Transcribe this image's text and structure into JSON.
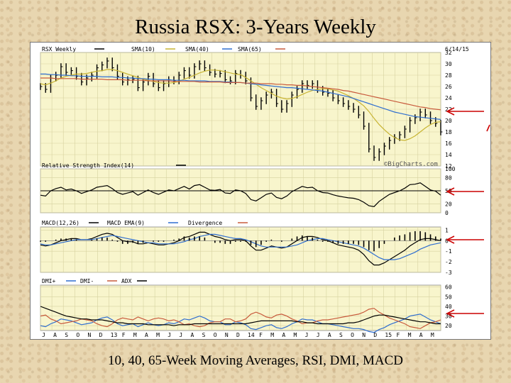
{
  "slide": {
    "title": "Russia RSX: 3-Years Weekly",
    "caption": "10, 40, 65-Week Moving Averages, RSI, DMI, MACD"
  },
  "chart_data": [
    {
      "panel": "price",
      "type": "line",
      "title": "",
      "date_label": "6/14/15",
      "watermark": "©BigCharts.com",
      "legend": [
        {
          "label": "RSX Weekly",
          "color": "#000000"
        },
        {
          "label": "SMA(10)",
          "color": "#c8b432"
        },
        {
          "label": "SMA(40)",
          "color": "#2f6ed0"
        },
        {
          "label": "SMA(65)",
          "color": "#c85a3c"
        }
      ],
      "y_ticks": [
        32,
        30,
        28,
        26,
        24,
        22,
        20,
        18,
        16,
        14,
        12
      ],
      "ylim": [
        12,
        32
      ],
      "series": [
        {
          "name": "RSX Weekly",
          "values": [
            26.0,
            25.5,
            27.5,
            28.0,
            29.5,
            28.5,
            28.8,
            27.8,
            26.8,
            27.5,
            28.0,
            29.3,
            29.8,
            30.5,
            29.3,
            27.8,
            26.8,
            27.2,
            27.3,
            25.8,
            26.8,
            27.8,
            26.5,
            25.8,
            26.5,
            27.2,
            27.0,
            28.0,
            28.8,
            28.0,
            29.5,
            30.0,
            29.3,
            28.5,
            28.2,
            28.3,
            27.2,
            27.0,
            28.3,
            28.0,
            27.0,
            24.0,
            22.5,
            23.5,
            24.5,
            25.0,
            23.0,
            22.0,
            23.0,
            24.5,
            25.5,
            26.5,
            26.2,
            26.5,
            25.5,
            25.0,
            24.8,
            24.0,
            23.5,
            23.0,
            22.5,
            22.0,
            21.0,
            19.0,
            15.0,
            13.5,
            14.5,
            15.5,
            16.5,
            17.0,
            17.5,
            18.5,
            20.0,
            20.5,
            21.5,
            21.0,
            20.0,
            19.5,
            18.0
          ]
        },
        {
          "name": "SMA(10)",
          "values": [
            26.5,
            26.3,
            26.6,
            27.0,
            27.5,
            27.8,
            28.0,
            28.2,
            28.2,
            28.3,
            28.5,
            28.7,
            28.8,
            29.0,
            29.0,
            28.8,
            28.5,
            28.2,
            27.9,
            27.6,
            27.3,
            27.1,
            26.9,
            26.7,
            26.6,
            26.6,
            26.7,
            26.9,
            27.3,
            27.6,
            28.0,
            28.4,
            28.7,
            28.9,
            28.9,
            28.8,
            28.6,
            28.4,
            28.2,
            28.1,
            27.6,
            27.0,
            26.4,
            25.8,
            25.3,
            24.8,
            24.3,
            24.0,
            23.8,
            23.9,
            24.2,
            24.6,
            25.0,
            25.3,
            25.5,
            25.6,
            25.6,
            25.4,
            25.2,
            24.8,
            24.4,
            23.9,
            23.3,
            22.6,
            21.6,
            20.4,
            19.3,
            18.4,
            17.6,
            17.0,
            16.6,
            16.5,
            16.8,
            17.3,
            18.0,
            18.7,
            19.3,
            19.7,
            19.8
          ]
        },
        {
          "name": "SMA(40)",
          "values": [
            28.2,
            28.2,
            28.1,
            28.1,
            28.0,
            28.0,
            27.9,
            27.9,
            27.8,
            27.8,
            27.8,
            27.8,
            27.7,
            27.7,
            27.7,
            27.6,
            27.6,
            27.5,
            27.5,
            27.4,
            27.4,
            27.3,
            27.3,
            27.2,
            27.2,
            27.2,
            27.1,
            27.1,
            27.1,
            27.0,
            27.0,
            27.0,
            27.0,
            26.9,
            26.9,
            26.9,
            26.8,
            26.8,
            26.7,
            26.7,
            26.6,
            26.5,
            26.4,
            26.3,
            26.2,
            26.1,
            26.0,
            25.9,
            25.8,
            25.8,
            25.7,
            25.6,
            25.5,
            25.4,
            25.3,
            25.2,
            25.0,
            24.8,
            24.6,
            24.4,
            24.2,
            23.9,
            23.6,
            23.3,
            23.0,
            22.7,
            22.4,
            22.1,
            21.8,
            21.5,
            21.3,
            21.1,
            20.9,
            20.7,
            20.6,
            20.5,
            20.4,
            20.3,
            20.2
          ]
        },
        {
          "name": "SMA(65)",
          "values": [
            27.5,
            27.5,
            27.5,
            27.4,
            27.4,
            27.4,
            27.4,
            27.4,
            27.3,
            27.3,
            27.3,
            27.3,
            27.3,
            27.2,
            27.2,
            27.2,
            27.2,
            27.1,
            27.1,
            27.1,
            27.1,
            27.0,
            27.0,
            27.0,
            27.0,
            27.0,
            26.9,
            26.9,
            26.9,
            26.9,
            26.9,
            26.8,
            26.8,
            26.8,
            26.8,
            26.8,
            26.7,
            26.7,
            26.7,
            26.7,
            26.6,
            26.6,
            26.6,
            26.5,
            26.5,
            26.5,
            26.4,
            26.4,
            26.3,
            26.3,
            26.2,
            26.2,
            26.1,
            26.0,
            25.9,
            25.8,
            25.7,
            25.6,
            25.5,
            25.3,
            25.2,
            25.0,
            24.8,
            24.6,
            24.4,
            24.2,
            24.0,
            23.8,
            23.6,
            23.4,
            23.2,
            23.0,
            22.8,
            22.6,
            22.4,
            22.3,
            22.1,
            22.0,
            21.9
          ]
        }
      ]
    },
    {
      "panel": "rsi",
      "type": "line",
      "legend": [
        {
          "label": "Relative Strength Index(14)",
          "color": "#000000"
        }
      ],
      "y_ticks": [
        100,
        80,
        50,
        20,
        0
      ],
      "ylim": [
        0,
        100
      ],
      "reference_line": 50,
      "series": [
        {
          "name": "Relative Strength Index(14)",
          "values": [
            40,
            38,
            50,
            55,
            58,
            52,
            54,
            50,
            44,
            48,
            52,
            58,
            60,
            62,
            55,
            46,
            42,
            45,
            48,
            40,
            46,
            52,
            46,
            42,
            47,
            52,
            50,
            55,
            60,
            54,
            62,
            64,
            58,
            52,
            51,
            53,
            45,
            44,
            52,
            50,
            44,
            30,
            27,
            34,
            42,
            45,
            35,
            32,
            38,
            48,
            54,
            60,
            57,
            58,
            50,
            46,
            45,
            41,
            38,
            36,
            34,
            33,
            30,
            24,
            16,
            14,
            26,
            34,
            42,
            46,
            50,
            56,
            64,
            65,
            68,
            60,
            52,
            49,
            40
          ]
        }
      ]
    },
    {
      "panel": "macd",
      "type": "line",
      "legend": [
        {
          "label": "MACD(12,26)",
          "color": "#000000"
        },
        {
          "label": "MACD EMA(9)",
          "color": "#2f6ed0"
        },
        {
          "label": "Divergence",
          "color": "#c85a3c"
        }
      ],
      "y_ticks": [
        1,
        0,
        -1,
        -2,
        -3
      ],
      "ylim": [
        -3,
        1.3
      ],
      "series": [
        {
          "name": "MACD(12,26)",
          "values": [
            -0.4,
            -0.5,
            -0.4,
            -0.2,
            0.0,
            0.1,
            0.2,
            0.2,
            0.1,
            0.1,
            0.2,
            0.4,
            0.6,
            0.7,
            0.6,
            0.3,
            0.0,
            -0.1,
            -0.1,
            -0.3,
            -0.3,
            -0.2,
            -0.3,
            -0.4,
            -0.4,
            -0.3,
            -0.2,
            0.0,
            0.3,
            0.4,
            0.6,
            0.8,
            0.8,
            0.6,
            0.4,
            0.3,
            0.1,
            0.0,
            0.1,
            0.1,
            0.0,
            -0.5,
            -0.9,
            -0.9,
            -0.7,
            -0.5,
            -0.6,
            -0.7,
            -0.6,
            -0.3,
            0.0,
            0.3,
            0.4,
            0.4,
            0.3,
            0.1,
            0.0,
            -0.2,
            -0.4,
            -0.5,
            -0.6,
            -0.7,
            -0.9,
            -1.3,
            -1.9,
            -2.3,
            -2.3,
            -2.1,
            -1.8,
            -1.5,
            -1.2,
            -0.9,
            -0.5,
            -0.2,
            0.1,
            0.2,
            0.2,
            0.1,
            0.0
          ]
        },
        {
          "name": "MACD EMA(9)",
          "values": [
            -0.3,
            -0.4,
            -0.4,
            -0.3,
            -0.2,
            -0.1,
            0.0,
            0.1,
            0.1,
            0.1,
            0.1,
            0.2,
            0.3,
            0.4,
            0.5,
            0.4,
            0.3,
            0.2,
            0.1,
            0.0,
            -0.1,
            -0.2,
            -0.2,
            -0.3,
            -0.3,
            -0.3,
            -0.3,
            -0.2,
            -0.1,
            0.1,
            0.2,
            0.4,
            0.5,
            0.6,
            0.6,
            0.5,
            0.4,
            0.3,
            0.2,
            0.2,
            0.1,
            -0.1,
            -0.3,
            -0.5,
            -0.6,
            -0.6,
            -0.6,
            -0.6,
            -0.6,
            -0.5,
            -0.4,
            -0.2,
            0.0,
            0.1,
            0.2,
            0.2,
            0.1,
            0.0,
            -0.1,
            -0.2,
            -0.3,
            -0.4,
            -0.5,
            -0.7,
            -1.0,
            -1.3,
            -1.6,
            -1.8,
            -1.8,
            -1.8,
            -1.7,
            -1.5,
            -1.3,
            -1.1,
            -0.8,
            -0.6,
            -0.4,
            -0.3,
            -0.2
          ]
        }
      ]
    },
    {
      "panel": "dmi",
      "type": "line",
      "legend": [
        {
          "label": "DMI+",
          "color": "#2f6ed0"
        },
        {
          "label": "DMI-",
          "color": "#c85a3c"
        },
        {
          "label": "ADX",
          "color": "#000000"
        }
      ],
      "y_ticks": [
        60,
        50,
        40,
        30,
        20
      ],
      "ylim": [
        15,
        62
      ],
      "series": [
        {
          "name": "DMI+",
          "values": [
            20,
            19,
            22,
            24,
            27,
            26,
            25,
            23,
            21,
            22,
            23,
            26,
            28,
            29,
            26,
            22,
            20,
            21,
            22,
            19,
            21,
            23,
            21,
            20,
            21,
            23,
            22,
            24,
            27,
            26,
            28,
            30,
            28,
            25,
            24,
            24,
            21,
            21,
            24,
            23,
            21,
            17,
            16,
            18,
            20,
            21,
            18,
            17,
            19,
            22,
            24,
            27,
            26,
            26,
            24,
            22,
            22,
            21,
            20,
            19,
            18,
            17,
            17,
            16,
            14,
            13,
            16,
            18,
            21,
            23,
            25,
            27,
            30,
            31,
            32,
            29,
            26,
            24,
            22
          ]
        },
        {
          "name": "DMI-",
          "values": [
            30,
            31,
            27,
            25,
            22,
            23,
            24,
            25,
            27,
            26,
            25,
            22,
            20,
            19,
            22,
            26,
            28,
            27,
            26,
            29,
            27,
            25,
            27,
            28,
            27,
            25,
            26,
            24,
            21,
            22,
            20,
            19,
            20,
            23,
            24,
            24,
            27,
            27,
            24,
            25,
            27,
            32,
            34,
            32,
            29,
            28,
            31,
            32,
            30,
            27,
            25,
            22,
            23,
            23,
            25,
            26,
            26,
            27,
            28,
            29,
            30,
            31,
            32,
            34,
            37,
            38,
            34,
            31,
            28,
            26,
            24,
            22,
            19,
            18,
            17,
            20,
            23,
            24,
            26
          ]
        },
        {
          "name": "ADX",
          "values": [
            40,
            38,
            36,
            34,
            32,
            30,
            29,
            28,
            27,
            27,
            26,
            26,
            26,
            25,
            24,
            23,
            23,
            22,
            22,
            22,
            22,
            21,
            21,
            21,
            21,
            21,
            20,
            21,
            21,
            21,
            22,
            22,
            22,
            22,
            22,
            22,
            22,
            22,
            22,
            22,
            22,
            23,
            24,
            25,
            25,
            25,
            25,
            25,
            25,
            25,
            24,
            24,
            23,
            23,
            22,
            22,
            22,
            22,
            22,
            22,
            23,
            23,
            24,
            26,
            28,
            30,
            31,
            31,
            30,
            29,
            28,
            27,
            26,
            25,
            24,
            24,
            23,
            22,
            22
          ]
        }
      ]
    },
    {
      "panel": "x_axis",
      "type": "table",
      "x_tick_labels": [
        "J",
        "A",
        "S",
        "O",
        "N",
        "D",
        "13",
        "F",
        "M",
        "A",
        "M",
        "J",
        "J",
        "A",
        "S",
        "O",
        "N",
        "D",
        "14",
        "F",
        "M",
        "A",
        "M",
        "J",
        "J",
        "A",
        "S",
        "O",
        "N",
        "D",
        "15",
        "F",
        "M",
        "A",
        "M"
      ]
    }
  ],
  "price_right_labels": [
    "20",
    "18",
    "16"
  ]
}
